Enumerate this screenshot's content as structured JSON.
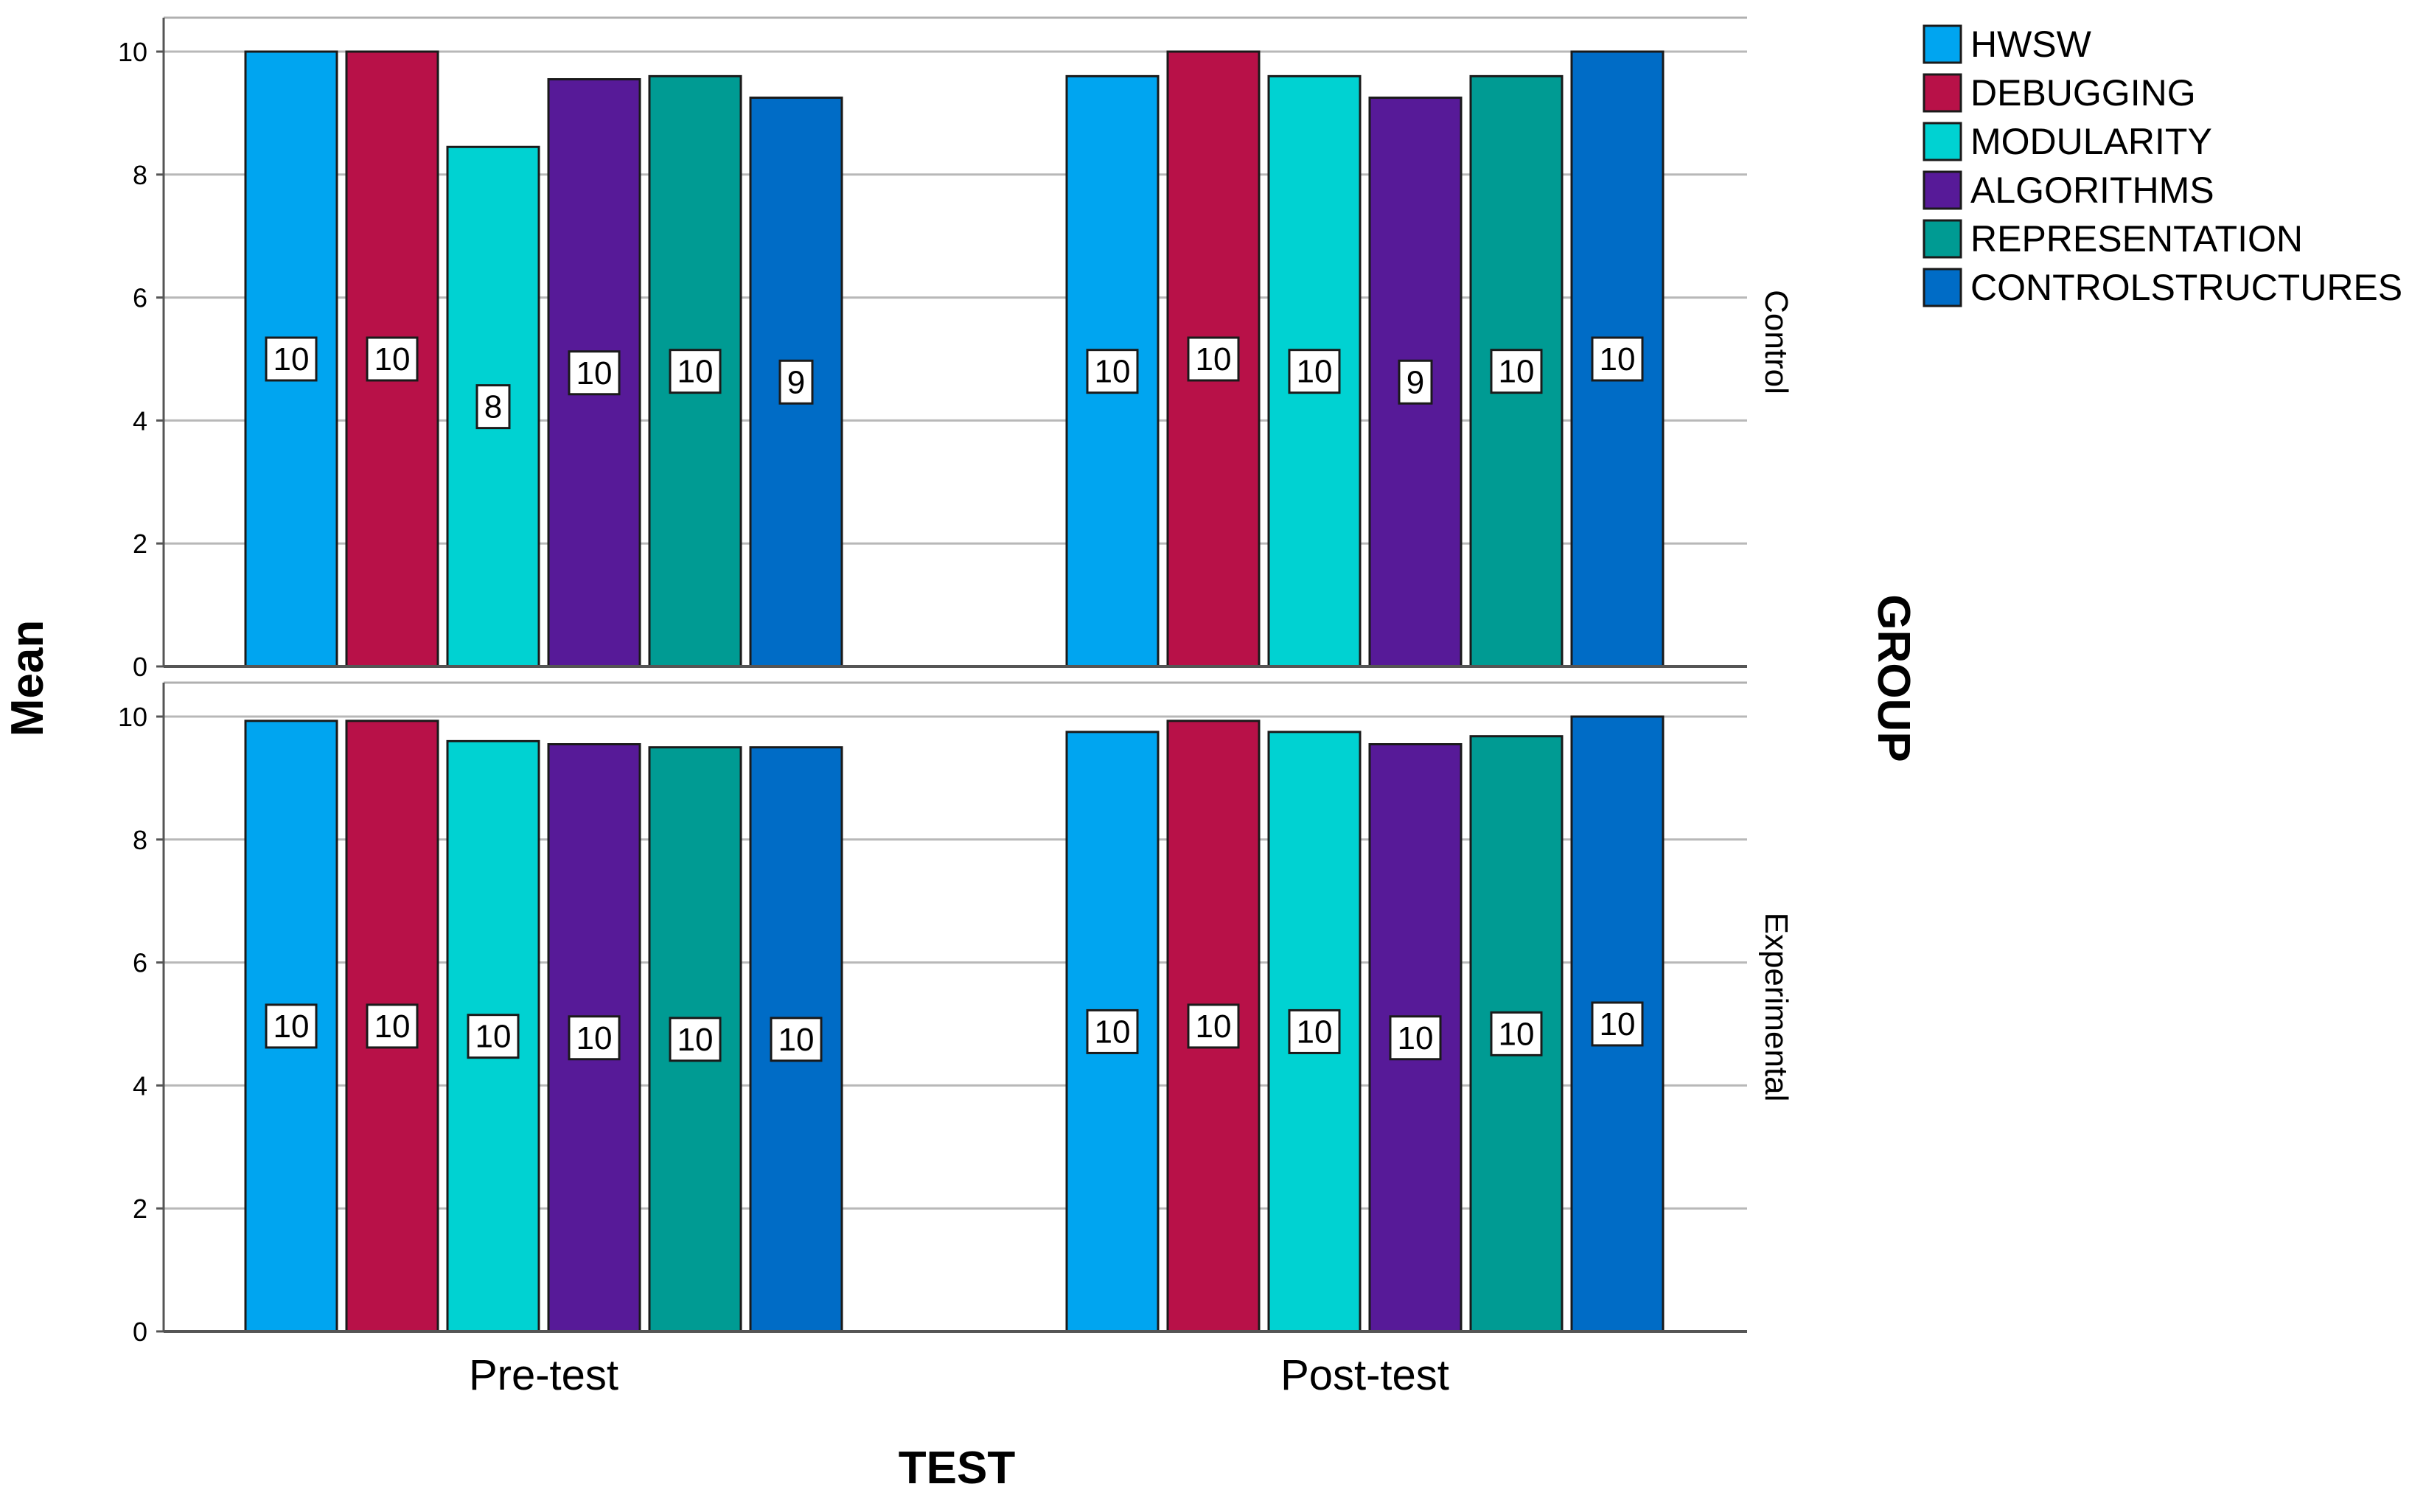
{
  "chart_data": {
    "type": "bar",
    "xlabel": "TEST",
    "ylabel": "Mean",
    "facet_label": "GROUP",
    "categories": [
      "Pre-test",
      "Post-test"
    ],
    "ylim": [
      0,
      10
    ],
    "yticks": [
      0,
      2,
      4,
      6,
      8,
      10
    ],
    "grid": true,
    "legend_position": "top-right",
    "series": [
      {
        "name": "HWSW",
        "color": "#00a5f0"
      },
      {
        "name": "DEBUGGING",
        "color": "#b81148"
      },
      {
        "name": "MODULARITY",
        "color": "#00d2d2"
      },
      {
        "name": "ALGORITHMS",
        "color": "#571a98"
      },
      {
        "name": "REPRESENTATION",
        "color": "#009b93"
      },
      {
        "name": "CONTROLSTRUCTURES",
        "color": "#006cc6"
      }
    ],
    "panels": [
      {
        "group": "Control",
        "values": [
          [
            10.0,
            10.0,
            8.45,
            9.55,
            9.6,
            9.25
          ],
          [
            9.6,
            10.0,
            9.6,
            9.25,
            9.6,
            10.0
          ]
        ],
        "labels": [
          [
            "10",
            "10",
            "8",
            "10",
            "10",
            "9"
          ],
          [
            "10",
            "10",
            "10",
            "9",
            "10",
            "10"
          ]
        ]
      },
      {
        "group": "Experimental",
        "values": [
          [
            9.93,
            9.93,
            9.6,
            9.55,
            9.5,
            9.5
          ],
          [
            9.75,
            9.93,
            9.75,
            9.55,
            9.68,
            10.0
          ]
        ],
        "labels": [
          [
            "10",
            "10",
            "10",
            "10",
            "10",
            "10"
          ],
          [
            "10",
            "10",
            "10",
            "10",
            "10",
            "10"
          ]
        ]
      }
    ]
  }
}
